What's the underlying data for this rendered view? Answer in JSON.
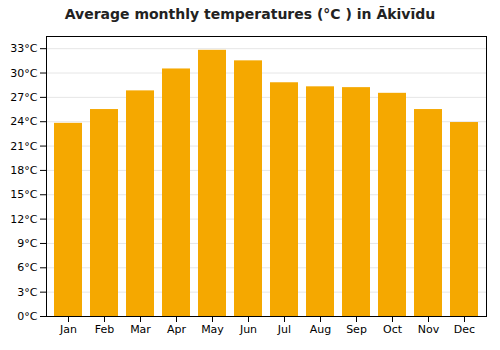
{
  "chart_data": {
    "type": "bar",
    "title": "Average monthly temperatures (°C ) in Ākivīdu",
    "categories": [
      "Jan",
      "Feb",
      "Mar",
      "Apr",
      "May",
      "Jun",
      "Jul",
      "Aug",
      "Sep",
      "Oct",
      "Nov",
      "Dec"
    ],
    "values": [
      23.8,
      25.5,
      27.8,
      30.5,
      32.8,
      31.5,
      28.8,
      28.3,
      28.2,
      27.5,
      25.5,
      23.9
    ],
    "color": "#F5A800",
    "ylim": [
      0,
      34.5
    ],
    "yticks": [
      {
        "value": 0,
        "label": "0°C"
      },
      {
        "value": 3,
        "label": "3°C"
      },
      {
        "value": 6,
        "label": "6°C"
      },
      {
        "value": 9,
        "label": "9°C"
      },
      {
        "value": 12,
        "label": "12°C"
      },
      {
        "value": 15,
        "label": "15°C"
      },
      {
        "value": 18,
        "label": "18°C"
      },
      {
        "value": 21,
        "label": "21°C"
      },
      {
        "value": 24,
        "label": "24°C"
      },
      {
        "value": 27,
        "label": "27°C"
      },
      {
        "value": 30,
        "label": "30°C"
      },
      {
        "value": 33,
        "label": "33°C"
      }
    ],
    "grid": true
  }
}
